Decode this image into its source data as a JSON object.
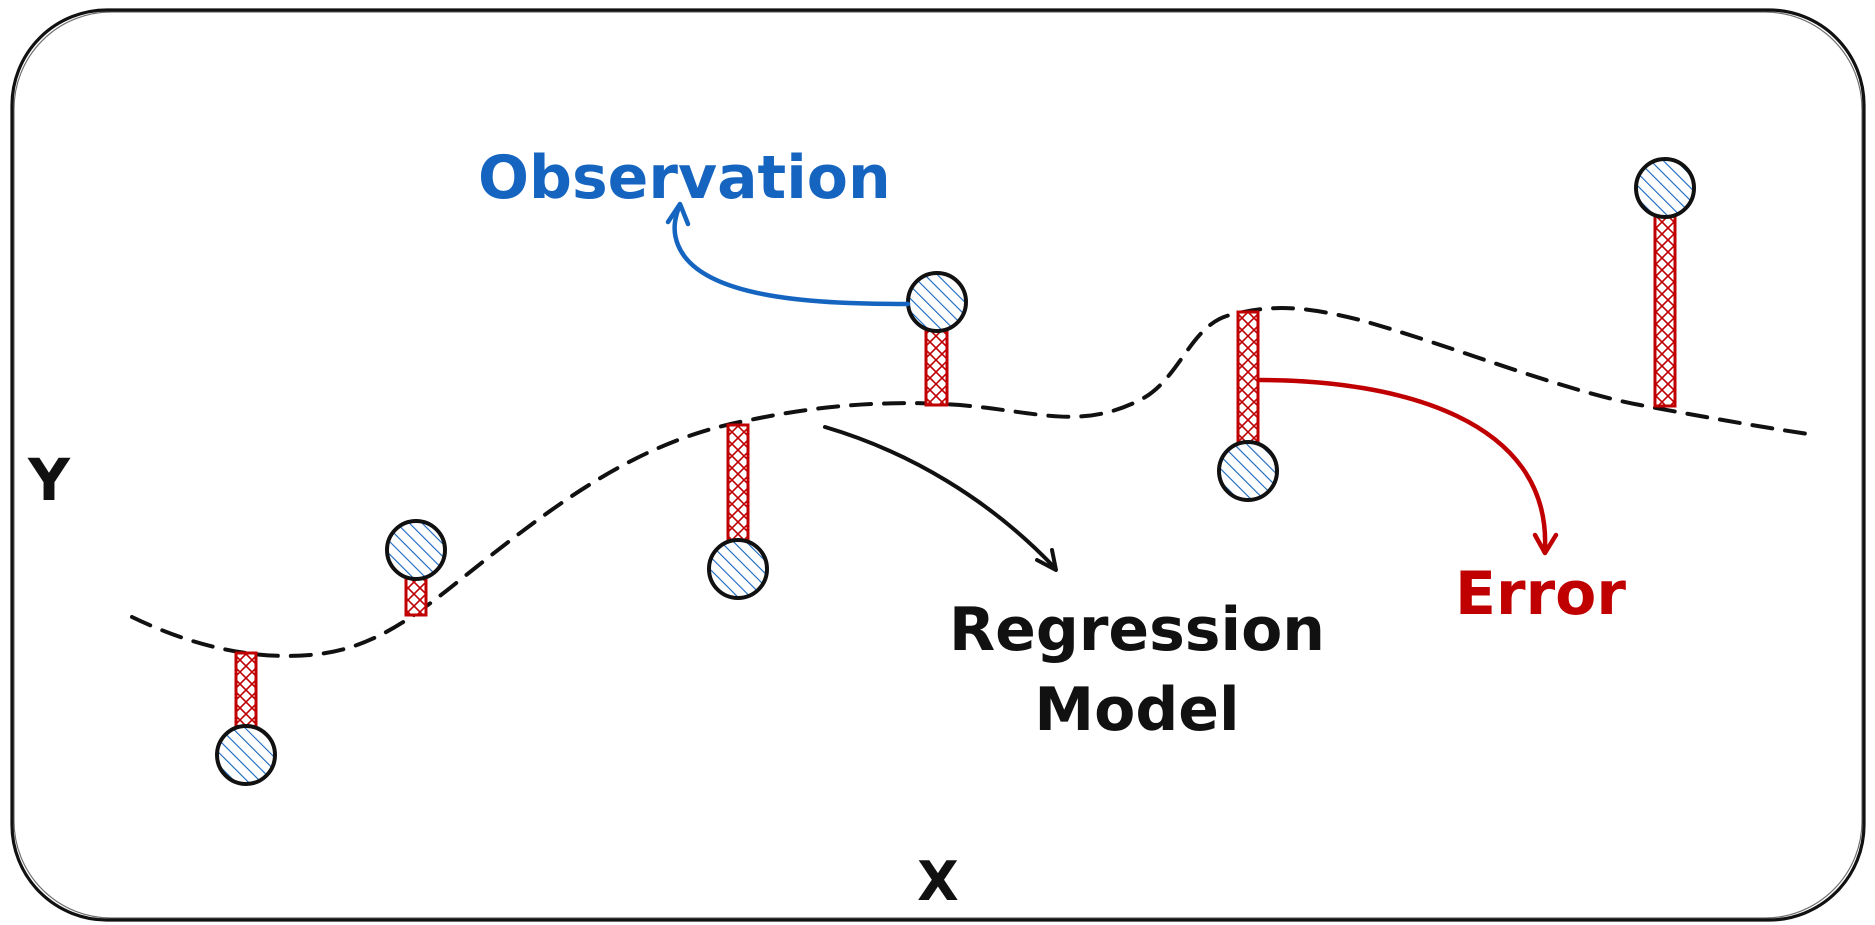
{
  "labels": {
    "observation": "Observation",
    "regression_model_line1": "Regression",
    "regression_model_line2": "Model",
    "error": "Error",
    "y_axis": "Y",
    "x_axis": "X"
  },
  "colors": {
    "observation": "#1565c0",
    "error": "#c00000",
    "model": "#111111",
    "frame": "#111111",
    "background": "#ffffff"
  },
  "icons": {
    "observation_point": "hatched-circle",
    "error_bar": "crosshatched-bar",
    "annotation_arrow": "curved-arrow"
  }
}
